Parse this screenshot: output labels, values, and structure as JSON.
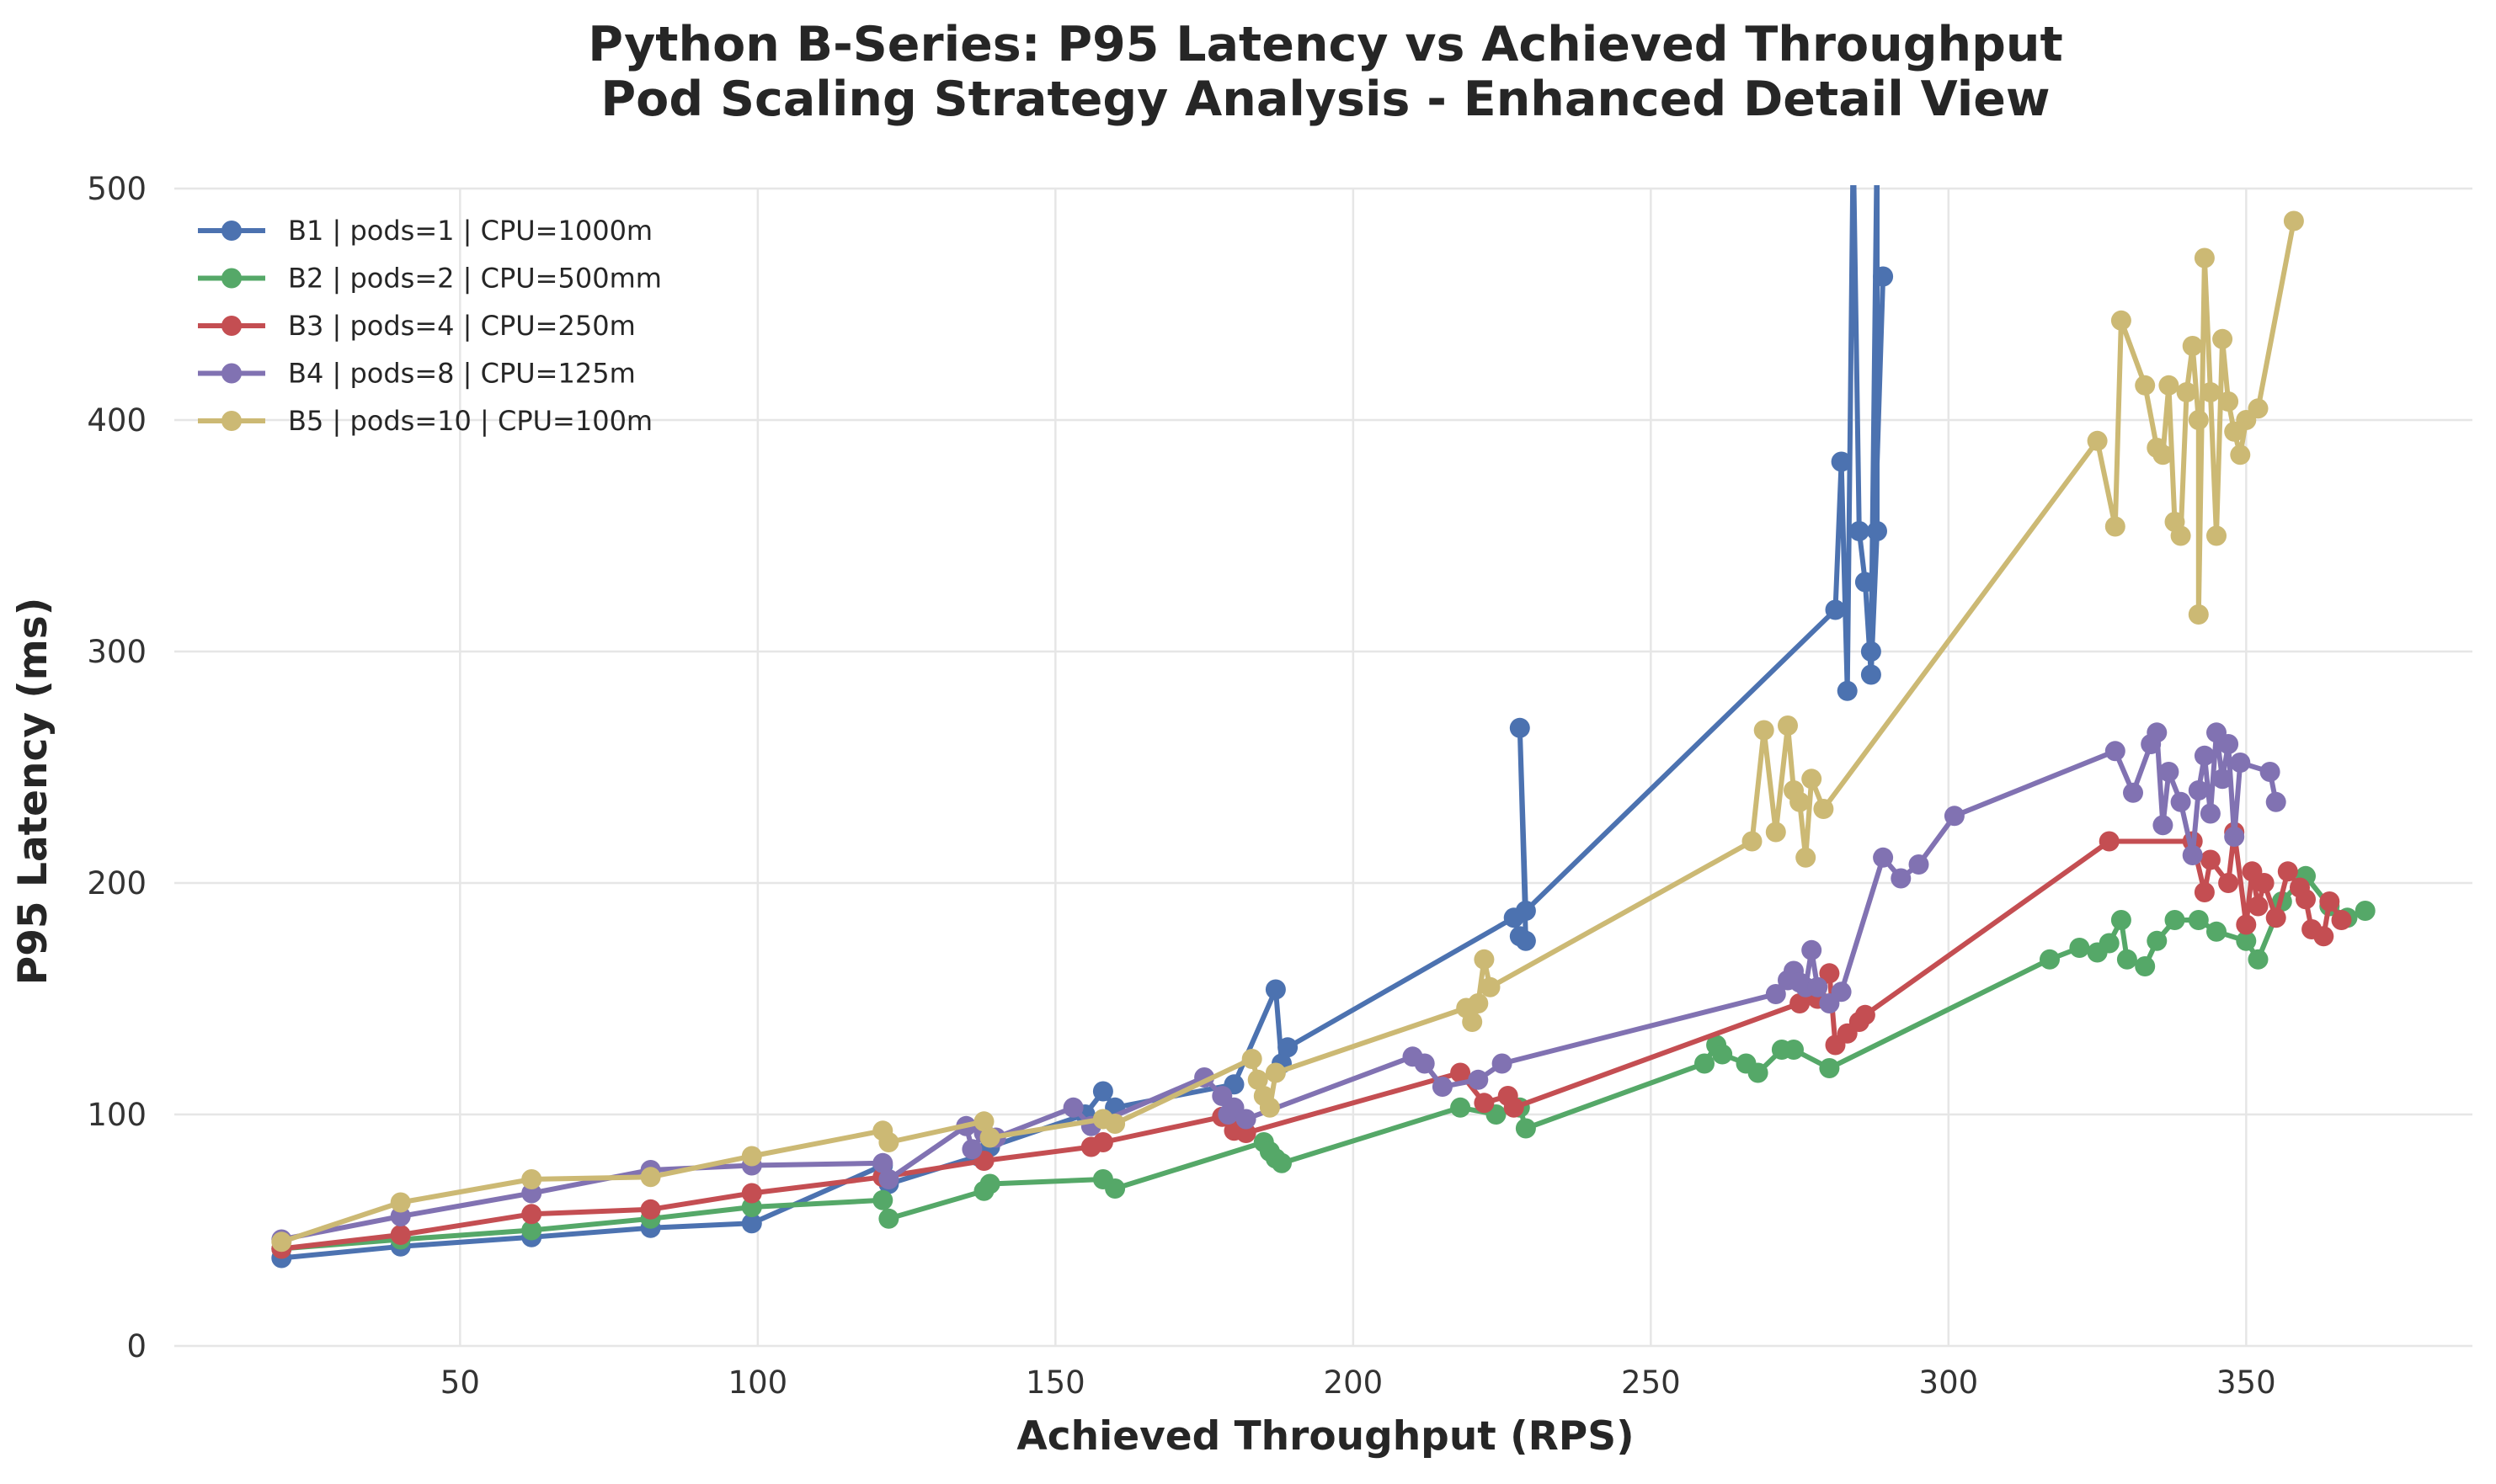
{
  "chart_data": {
    "type": "line",
    "title": "Python B-Series: P95 Latency vs Achieved Throughput",
    "subtitle": "Pod Scaling Strategy Analysis - Enhanced Detail View",
    "xlabel": "Achieved Throughput (RPS)",
    "ylabel": "P95 Latency (ms)",
    "xlim": [
      2,
      388
    ],
    "ylim": [
      0,
      500
    ],
    "xticks": [
      "50",
      "100",
      "150",
      "200",
      "250",
      "300",
      "350"
    ],
    "yticks": [
      "0",
      "100",
      "200",
      "300",
      "400",
      "500"
    ],
    "grid": true,
    "legend_position": "top-left",
    "series": [
      {
        "name": "B1 | pods=1 | CPU=1000m",
        "color": "#4c72b0",
        "points": [
          [
            20,
            38
          ],
          [
            40,
            43
          ],
          [
            62,
            47
          ],
          [
            82,
            51
          ],
          [
            99,
            53
          ],
          [
            121,
            78
          ],
          [
            122,
            70
          ],
          [
            137,
            82
          ],
          [
            139,
            86
          ],
          [
            155,
            100
          ],
          [
            158,
            110
          ],
          [
            160,
            103
          ],
          [
            180,
            113
          ],
          [
            187,
            154
          ],
          [
            188,
            122
          ],
          [
            189,
            129
          ],
          [
            227,
            185
          ],
          [
            228,
            177
          ],
          [
            229,
            175
          ],
          [
            228,
            267
          ],
          [
            229,
            188
          ],
          [
            281,
            318
          ],
          [
            282,
            382
          ],
          [
            283,
            283
          ],
          [
            284,
            520
          ],
          [
            285,
            352
          ],
          [
            286,
            330
          ],
          [
            287,
            290
          ],
          [
            288,
            352
          ],
          [
            288,
            520
          ],
          [
            287,
            300
          ],
          [
            289,
            462
          ]
        ]
      },
      {
        "name": "B2 | pods=2 | CPU=500mm",
        "color": "#55a868",
        "points": [
          [
            20,
            42
          ],
          [
            40,
            46
          ],
          [
            62,
            50
          ],
          [
            82,
            55
          ],
          [
            99,
            60
          ],
          [
            121,
            63
          ],
          [
            122,
            55
          ],
          [
            138,
            67
          ],
          [
            139,
            70
          ],
          [
            158,
            72
          ],
          [
            160,
            68
          ],
          [
            185,
            88
          ],
          [
            186,
            84
          ],
          [
            187,
            81
          ],
          [
            188,
            79
          ],
          [
            218,
            103
          ],
          [
            224,
            100
          ],
          [
            228,
            103
          ],
          [
            229,
            94
          ],
          [
            259,
            122
          ],
          [
            261,
            130
          ],
          [
            262,
            126
          ],
          [
            266,
            122
          ],
          [
            268,
            118
          ],
          [
            272,
            128
          ],
          [
            274,
            128
          ],
          [
            280,
            120
          ],
          [
            317,
            167
          ],
          [
            322,
            172
          ],
          [
            325,
            170
          ],
          [
            327,
            174
          ],
          [
            329,
            184
          ],
          [
            330,
            167
          ],
          [
            333,
            164
          ],
          [
            335,
            175
          ],
          [
            338,
            184
          ],
          [
            342,
            184
          ],
          [
            345,
            179
          ],
          [
            350,
            175
          ],
          [
            352,
            167
          ],
          [
            356,
            192
          ],
          [
            360,
            203
          ],
          [
            364,
            190
          ],
          [
            367,
            185
          ],
          [
            370,
            188
          ]
        ]
      },
      {
        "name": "B3 | pods=4 | CPU=250m",
        "color": "#c44e52",
        "points": [
          [
            20,
            42
          ],
          [
            40,
            48
          ],
          [
            62,
            57
          ],
          [
            82,
            59
          ],
          [
            99,
            66
          ],
          [
            121,
            73
          ],
          [
            138,
            80
          ],
          [
            156,
            86
          ],
          [
            158,
            88
          ],
          [
            178,
            99
          ],
          [
            180,
            93
          ],
          [
            182,
            92
          ],
          [
            218,
            118
          ],
          [
            222,
            105
          ],
          [
            226,
            108
          ],
          [
            227,
            103
          ],
          [
            275,
            148
          ],
          [
            278,
            150
          ],
          [
            280,
            161
          ],
          [
            281,
            130
          ],
          [
            283,
            135
          ],
          [
            285,
            140
          ],
          [
            286,
            143
          ],
          [
            327,
            218
          ],
          [
            341,
            218
          ],
          [
            343,
            196
          ],
          [
            344,
            210
          ],
          [
            347,
            200
          ],
          [
            348,
            222
          ],
          [
            350,
            182
          ],
          [
            351,
            205
          ],
          [
            352,
            190
          ],
          [
            353,
            200
          ],
          [
            355,
            185
          ],
          [
            357,
            205
          ],
          [
            359,
            198
          ],
          [
            360,
            193
          ],
          [
            361,
            180
          ],
          [
            363,
            177
          ],
          [
            364,
            192
          ],
          [
            366,
            184
          ]
        ]
      },
      {
        "name": "B4 | pods=8 | CPU=125m",
        "color": "#8172b2",
        "points": [
          [
            20,
            46
          ],
          [
            40,
            56
          ],
          [
            62,
            66
          ],
          [
            82,
            76
          ],
          [
            99,
            78
          ],
          [
            121,
            79
          ],
          [
            122,
            72
          ],
          [
            135,
            95
          ],
          [
            136,
            85
          ],
          [
            138,
            92
          ],
          [
            140,
            90
          ],
          [
            153,
            103
          ],
          [
            156,
            95
          ],
          [
            175,
            116
          ],
          [
            178,
            108
          ],
          [
            179,
            100
          ],
          [
            180,
            103
          ],
          [
            182,
            98
          ],
          [
            210,
            125
          ],
          [
            212,
            122
          ],
          [
            215,
            112
          ],
          [
            221,
            115
          ],
          [
            225,
            122
          ],
          [
            271,
            152
          ],
          [
            273,
            158
          ],
          [
            274,
            162
          ],
          [
            275,
            157
          ],
          [
            276,
            155
          ],
          [
            277,
            171
          ],
          [
            278,
            155
          ],
          [
            280,
            148
          ],
          [
            282,
            153
          ],
          [
            289,
            211
          ],
          [
            292,
            202
          ],
          [
            295,
            208
          ],
          [
            301,
            229
          ],
          [
            328,
            257
          ],
          [
            331,
            239
          ],
          [
            334,
            260
          ],
          [
            335,
            265
          ],
          [
            336,
            225
          ],
          [
            337,
            248
          ],
          [
            339,
            235
          ],
          [
            341,
            212
          ],
          [
            342,
            240
          ],
          [
            343,
            255
          ],
          [
            344,
            230
          ],
          [
            345,
            265
          ],
          [
            346,
            245
          ],
          [
            347,
            260
          ],
          [
            348,
            220
          ],
          [
            349,
            252
          ],
          [
            354,
            248
          ],
          [
            355,
            235
          ]
        ]
      },
      {
        "name": "B5 | pods=10 | CPU=100m",
        "color": "#ccb974",
        "points": [
          [
            20,
            45
          ],
          [
            40,
            62
          ],
          [
            62,
            72
          ],
          [
            82,
            73
          ],
          [
            99,
            82
          ],
          [
            121,
            93
          ],
          [
            122,
            88
          ],
          [
            138,
            97
          ],
          [
            139,
            90
          ],
          [
            158,
            98
          ],
          [
            160,
            96
          ],
          [
            183,
            124
          ],
          [
            184,
            115
          ],
          [
            185,
            108
          ],
          [
            186,
            103
          ],
          [
            187,
            118
          ],
          [
            219,
            146
          ],
          [
            220,
            140
          ],
          [
            221,
            148
          ],
          [
            222,
            167
          ],
          [
            223,
            155
          ],
          [
            267,
            218
          ],
          [
            269,
            266
          ],
          [
            271,
            222
          ],
          [
            273,
            268
          ],
          [
            274,
            240
          ],
          [
            275,
            235
          ],
          [
            276,
            211
          ],
          [
            277,
            245
          ],
          [
            279,
            232
          ],
          [
            325,
            391
          ],
          [
            328,
            354
          ],
          [
            329,
            443
          ],
          [
            333,
            415
          ],
          [
            335,
            388
          ],
          [
            336,
            385
          ],
          [
            337,
            415
          ],
          [
            338,
            356
          ],
          [
            339,
            350
          ],
          [
            340,
            412
          ],
          [
            341,
            432
          ],
          [
            342,
            400
          ],
          [
            342,
            316
          ],
          [
            343,
            470
          ],
          [
            344,
            412
          ],
          [
            345,
            350
          ],
          [
            346,
            435
          ],
          [
            347,
            408
          ],
          [
            348,
            395
          ],
          [
            349,
            385
          ],
          [
            350,
            400
          ],
          [
            352,
            405
          ],
          [
            358,
            486
          ]
        ]
      }
    ]
  }
}
